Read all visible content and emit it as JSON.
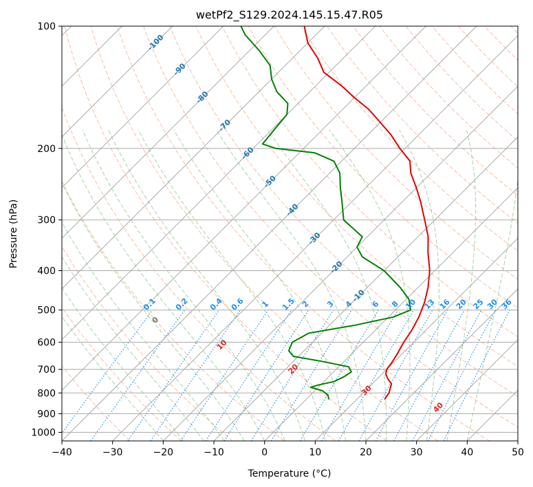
{
  "chart_data": {
    "type": "line",
    "title": "wetPf2_S129.2024.145.15.47.R05",
    "xlabel": "Temperature (°C)",
    "ylabel": "Pressure (hPa)",
    "xlim": [
      -40,
      50
    ],
    "ylim": [
      1050,
      100
    ],
    "y_scale": "log",
    "grid": true,
    "x_ticks": [
      -40,
      -30,
      -20,
      -10,
      0,
      10,
      20,
      30,
      40,
      50
    ],
    "y_ticks": [
      100,
      200,
      300,
      400,
      500,
      600,
      700,
      800,
      900,
      1000
    ],
    "skew": 45,
    "colors": {
      "temperature": "#e00000",
      "dewpoint": "#008000",
      "isotherm": "#aaaaaa",
      "isobar": "#aaaaaa",
      "dry_adiabat": "#f4a582",
      "moist_adiabat": "#7fbf7f",
      "mixing_ratio": "#1f8ee8",
      "isotherm_label": "#1f77b4",
      "theta_label": "#d62728"
    },
    "series": [
      {
        "key": "temperature",
        "pressure": [
          830,
          800,
          760,
          740,
          720,
          700,
          670,
          640,
          600,
          560,
          520,
          480,
          440,
          400,
          360,
          330,
          300,
          270,
          250,
          230,
          215,
          200,
          185,
          170,
          160,
          150,
          140,
          130,
          120,
          110,
          100
        ],
        "values": [
          15.5,
          15.1,
          13.8,
          12.2,
          10.8,
          10.0,
          9.6,
          9.0,
          8.0,
          7.2,
          6.0,
          4.3,
          2.0,
          -1.0,
          -5.0,
          -8.0,
          -12.0,
          -16.5,
          -20.0,
          -24.0,
          -26.5,
          -31.0,
          -35.5,
          -41.0,
          -45.0,
          -50.0,
          -55.0,
          -61.0,
          -65.0,
          -70.0,
          -74.0
        ]
      },
      {
        "key": "dewpoint",
        "pressure": [
          830,
          810,
          790,
          775,
          765,
          750,
          730,
          710,
          690,
          670,
          650,
          630,
          600,
          570,
          545,
          520,
          500,
          470,
          440,
          400,
          370,
          350,
          330,
          300,
          270,
          250,
          230,
          215,
          205,
          200,
          195,
          180,
          165,
          155,
          145,
          135,
          125,
          115,
          105,
          100
        ],
        "values": [
          4.5,
          3.5,
          1.5,
          -1.5,
          -0.5,
          2.0,
          3.0,
          3.5,
          2.0,
          -4.0,
          -11.0,
          -13.0,
          -14.0,
          -12.5,
          -5.0,
          1.0,
          3.0,
          0.5,
          -3.5,
          -10.0,
          -17.0,
          -20.0,
          -21.0,
          -28.0,
          -32.0,
          -35.0,
          -38.0,
          -41.5,
          -47.0,
          -55.5,
          -59.0,
          -59.5,
          -60.0,
          -62.0,
          -66.5,
          -70.0,
          -73.0,
          -78.0,
          -84.0,
          -86.5
        ]
      }
    ],
    "isotherm_labels": [
      "-100",
      "-90",
      "-80",
      "-70",
      "-60",
      "-50",
      "-40",
      "-30",
      "-20",
      "-10"
    ],
    "isotherm_label_values": [
      -100,
      -90,
      -80,
      -70,
      -60,
      -50,
      -40,
      -30,
      -20,
      -10
    ],
    "mixing_ratio_labels": [
      "0.1",
      "0.2",
      "0.4",
      "0.6",
      "1",
      "1.5",
      "2",
      "3",
      "4",
      "6",
      "8",
      "10",
      "13",
      "16",
      "20",
      "25",
      "30",
      "36"
    ],
    "mixing_ratio_values": [
      0.1,
      0.2,
      0.4,
      0.6,
      1,
      1.5,
      2,
      3,
      4,
      6,
      8,
      10,
      13,
      16,
      20,
      25,
      30,
      36
    ],
    "theta_labels": [
      "0",
      "10",
      "20",
      "30",
      "40"
    ],
    "theta_values": [
      0,
      10,
      20,
      30,
      40
    ]
  }
}
